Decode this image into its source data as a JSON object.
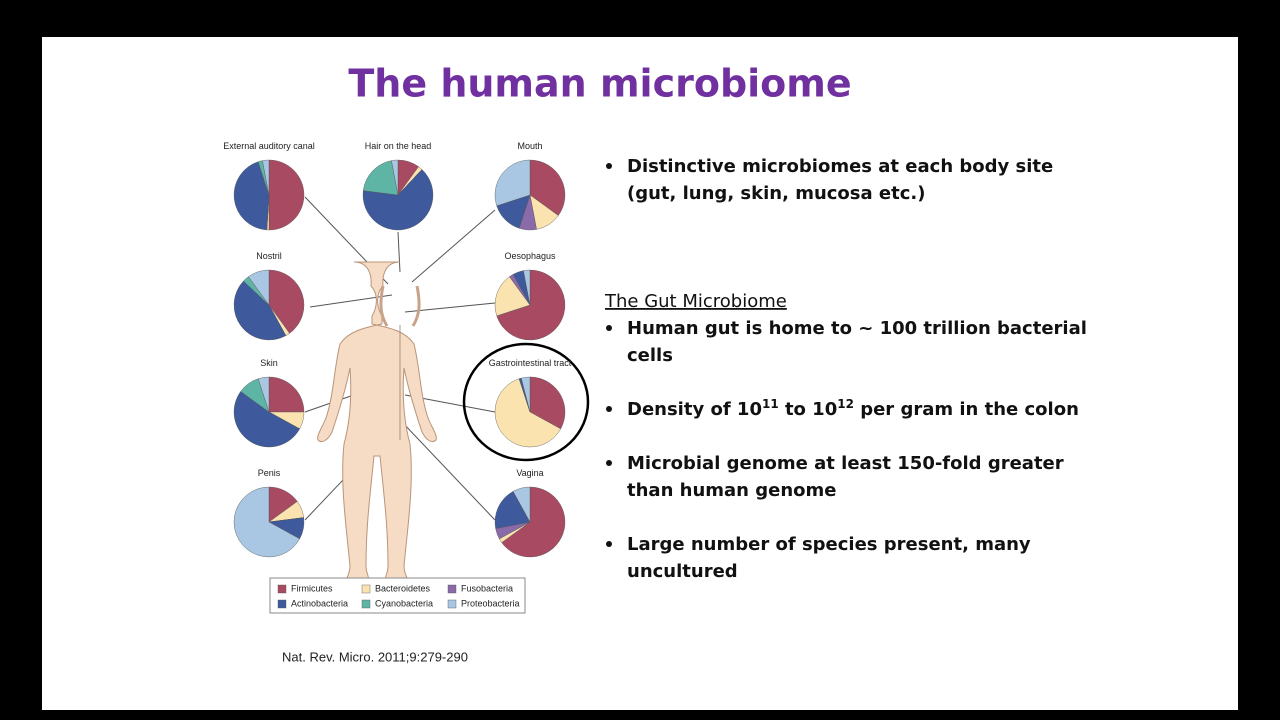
{
  "title": "The human microbiome",
  "figure": {
    "legend": [
      {
        "name": "Firmicutes",
        "color": "#a84a62"
      },
      {
        "name": "Bacteroidetes",
        "color": "#fbe3b0"
      },
      {
        "name": "Fusobacteria",
        "color": "#8a6aa8"
      },
      {
        "name": "Actinobacteria",
        "color": "#3e5a9c"
      },
      {
        "name": "Cyanobacteria",
        "color": "#5fb5a5"
      },
      {
        "name": "Proteobacteria",
        "color": "#a9c6e3"
      }
    ],
    "sites": [
      {
        "label": "External auditory canal",
        "values": [
          50,
          1,
          0,
          44,
          2,
          3
        ]
      },
      {
        "label": "Hair on the head",
        "values": [
          10,
          2,
          0,
          65,
          20,
          3
        ]
      },
      {
        "label": "Mouth",
        "values": [
          35,
          12,
          8,
          15,
          0,
          30
        ]
      },
      {
        "label": "Nostril",
        "values": [
          40,
          2,
          0,
          45,
          3,
          10
        ]
      },
      {
        "label": "Oesophagus",
        "values": [
          70,
          20,
          2,
          5,
          0,
          3
        ]
      },
      {
        "label": "Skin",
        "values": [
          25,
          8,
          0,
          52,
          10,
          5
        ]
      },
      {
        "label": "Gastrointestinal tract",
        "values": [
          33,
          62,
          0,
          1,
          0,
          4
        ]
      },
      {
        "label": "Penis",
        "values": [
          15,
          8,
          0,
          10,
          0,
          67
        ]
      },
      {
        "label": "Vagina",
        "values": [
          65,
          2,
          5,
          20,
          0,
          8
        ]
      }
    ],
    "citation": "Nat. Rev. Micro.  2011;9:279-290"
  },
  "bullets_top": [
    {
      "lines": [
        "Distinctive microbiomes at each body site",
        "(gut, lung, skin, mucosa etc.)"
      ]
    }
  ],
  "gut": {
    "heading": "The Gut Microbiome",
    "bullets": [
      {
        "lines": [
          "Human gut is home to ~ 100 trillion bacterial",
          "cells"
        ]
      },
      {
        "parts": [
          "Density of 10",
          "11",
          " to 10",
          "12",
          " per gram in the colon"
        ]
      },
      {
        "lines": [
          "Microbial genome at least 150-fold greater",
          "than human genome"
        ]
      },
      {
        "lines": [
          "Large number of species present, many",
          "uncultured"
        ]
      }
    ]
  }
}
